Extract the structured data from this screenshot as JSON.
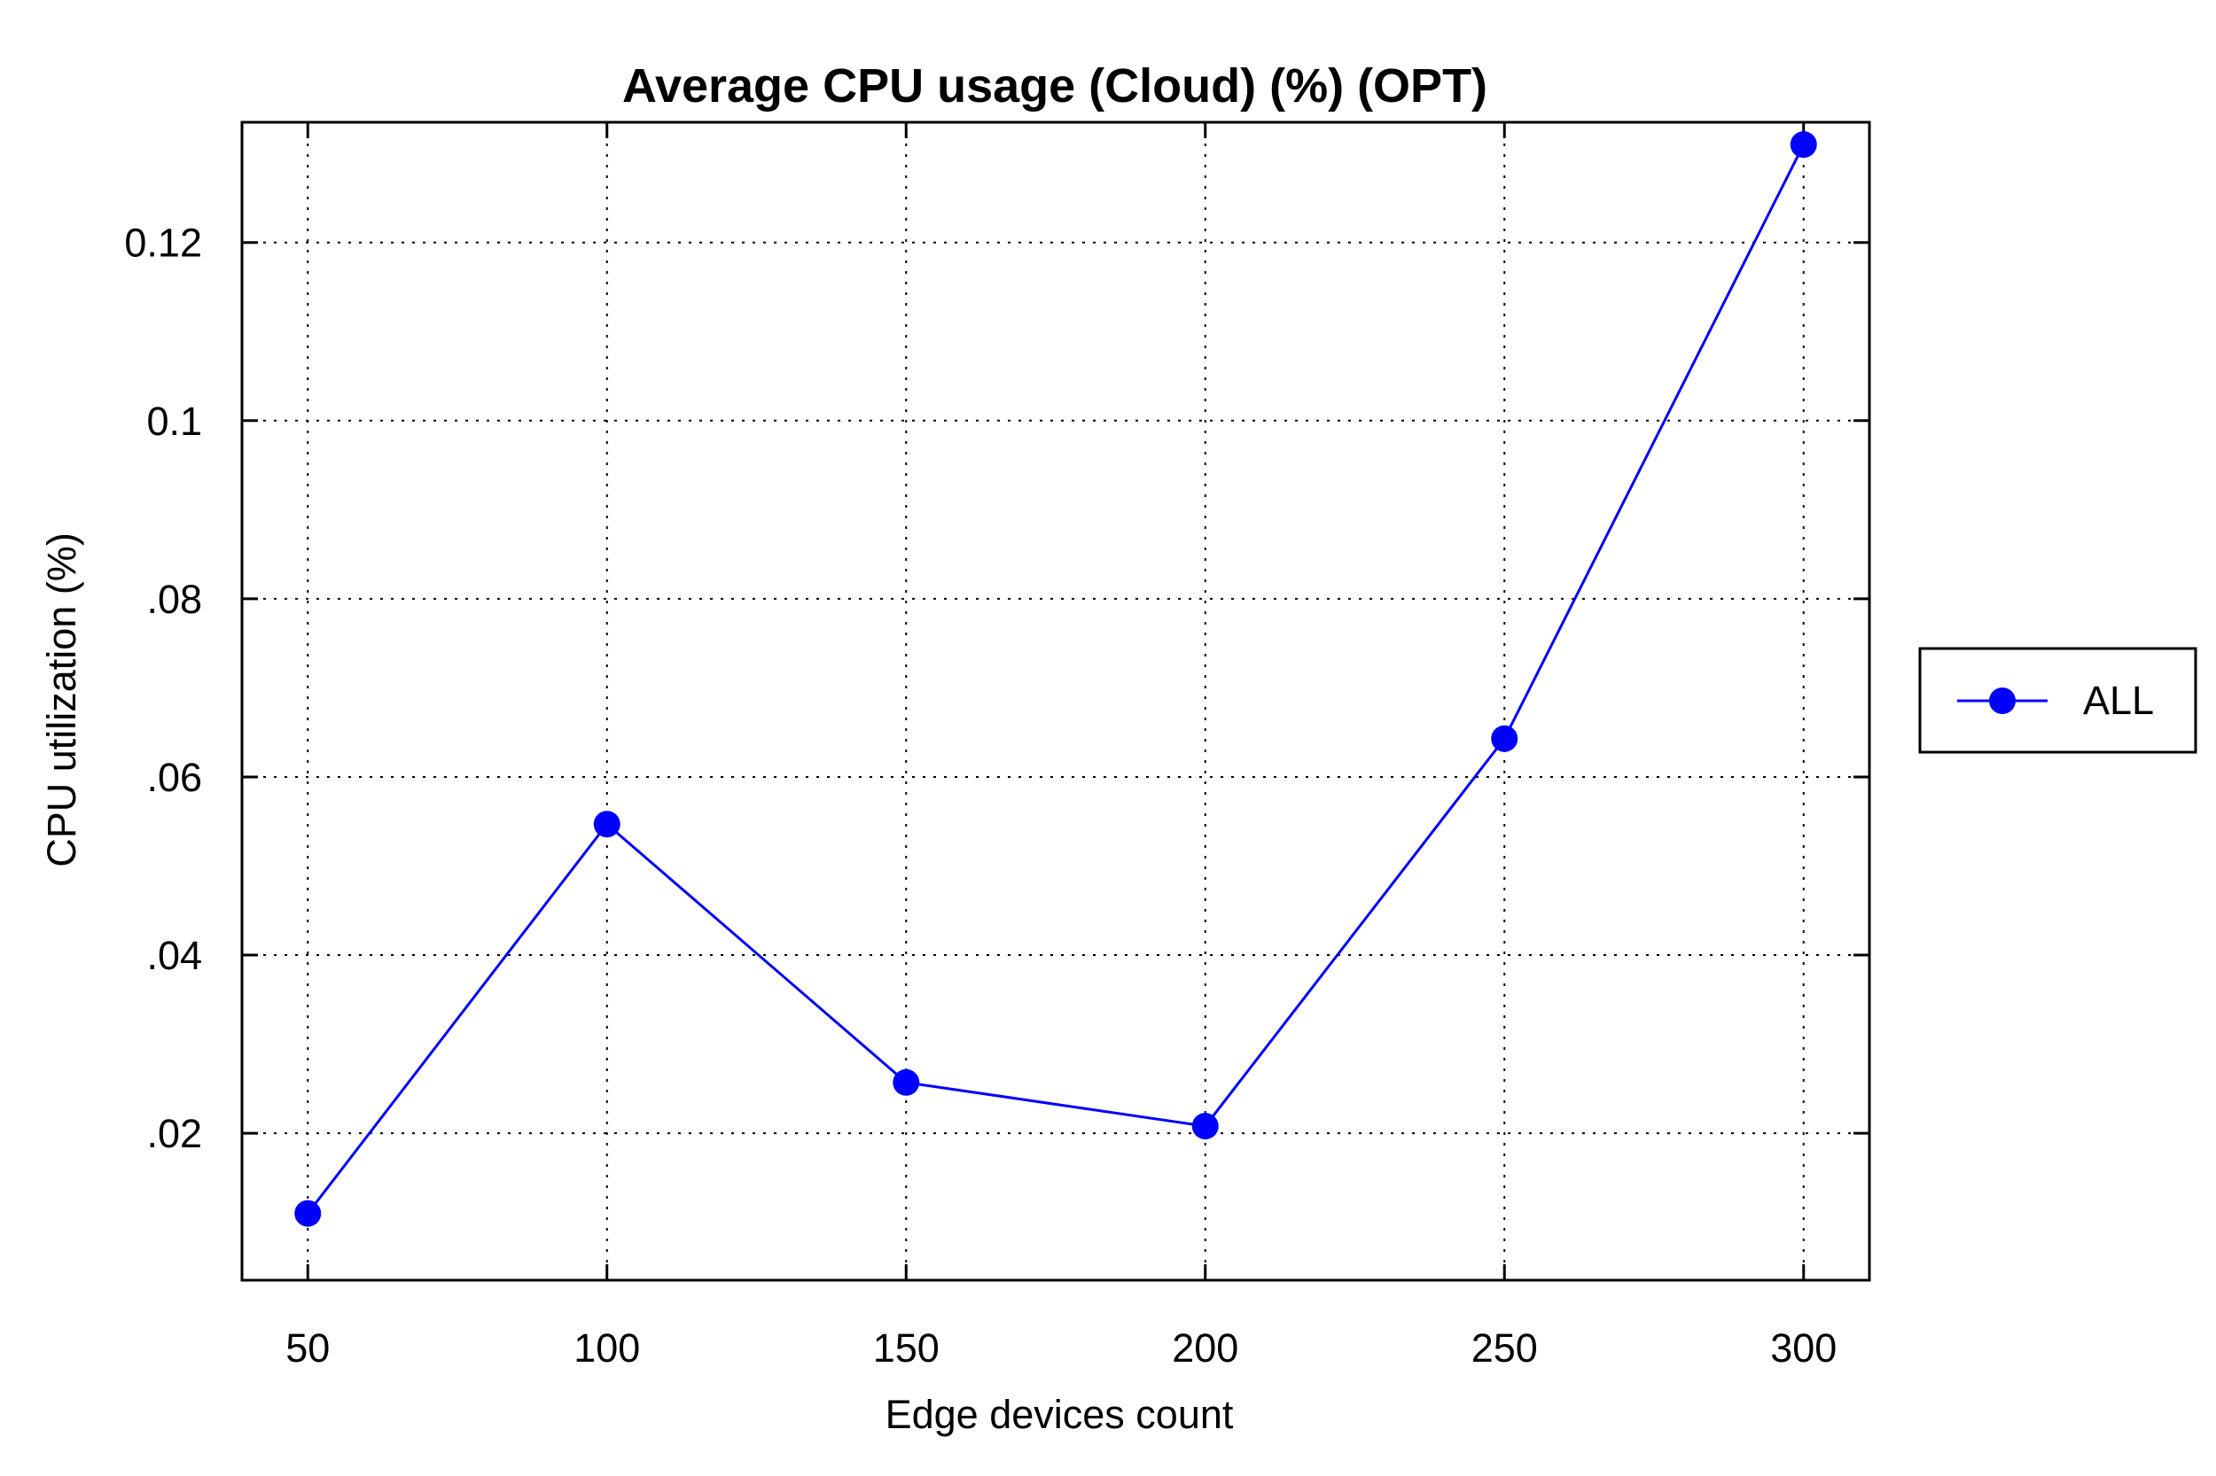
{
  "chart_data": {
    "type": "line",
    "title": "Average CPU usage (Cloud) (%) (OPT)",
    "xlabel": "Edge devices count",
    "ylabel": "CPU utilization (%)",
    "x": [
      50,
      100,
      150,
      200,
      250,
      300
    ],
    "xlim": [
      39,
      311
    ],
    "ylim": [
      0.0035,
      0.1335
    ],
    "x_ticks": [
      50,
      100,
      150,
      200,
      250,
      300
    ],
    "x_tick_labels": [
      "50",
      "100",
      "150",
      "200",
      "250",
      "300"
    ],
    "y_ticks": [
      0.02,
      0.04,
      0.06,
      0.08,
      0.1,
      0.12
    ],
    "y_tick_labels": [
      ".02",
      ".04",
      ".06",
      ".08",
      "0.1",
      "0.12"
    ],
    "grid": true,
    "legend_position": "right",
    "series": [
      {
        "name": "ALL",
        "color": "#0000ff",
        "marker": "circle",
        "values": [
          0.011,
          0.0547,
          0.0257,
          0.0208,
          0.0643,
          0.131
        ]
      }
    ]
  }
}
